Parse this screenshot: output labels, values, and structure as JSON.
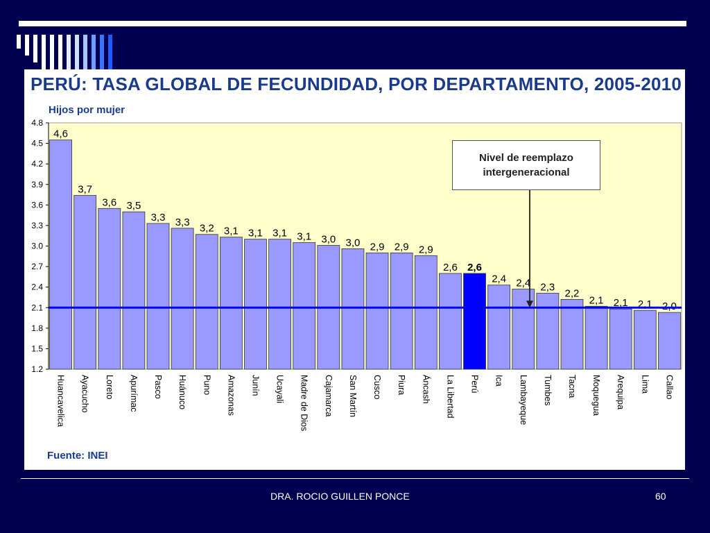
{
  "slide": {
    "title": "PERÚ: TASA GLOBAL DE FECUNDIDAD, POR DEPARTAMENTO, 2005-2010",
    "y_axis_label": "Hijos por mujer",
    "source": "Fuente: INEI",
    "footer": "DRA. ROCIO GUILLEN PONCE",
    "page_number": "60",
    "callout_line1": "Nivel de reemplazo",
    "callout_line2": "intergeneracional"
  },
  "colors": {
    "background": "#000050",
    "bar": "#9999ff",
    "highlight_bar": "#0000ff",
    "plot_area": "#ffffcc",
    "reference_line": "#0000ff",
    "title": "#1a3b8c"
  },
  "chart_data": {
    "type": "bar",
    "title": "PERÚ: TASA GLOBAL DE FECUNDIDAD, POR DEPARTAMENTO, 2005-2010",
    "ylabel": "Hijos por mujer",
    "xlabel": "",
    "ylim": [
      1.2,
      4.8
    ],
    "yticks": [
      "1.2",
      "1.5",
      "1.8",
      "2.1",
      "2.4",
      "2.7",
      "3.0",
      "3.3",
      "3.6",
      "3.9",
      "4.2",
      "4.5",
      "4.8"
    ],
    "grid": false,
    "categories": [
      "Huancavelica",
      "Ayacucho",
      "Loreto",
      "Apurímac",
      "Pasco",
      "Huánuco",
      "Puno",
      "Amazonas",
      "Junín",
      "Ucayali",
      "Madre de Dios",
      "Cajamarca",
      "San Martín",
      "Cusco",
      "Piura",
      "Áncash",
      "La Libertad",
      "Perú",
      "Ica",
      "Lambayeque",
      "Tumbes",
      "Tacna",
      "Moquegua",
      "Arequipa",
      "Lima",
      "Callao"
    ],
    "values": [
      4.55,
      3.74,
      3.55,
      3.5,
      3.33,
      3.26,
      3.17,
      3.13,
      3.1,
      3.1,
      3.05,
      3.01,
      2.96,
      2.9,
      2.9,
      2.86,
      2.6,
      2.6,
      2.43,
      2.37,
      2.31,
      2.22,
      2.12,
      2.08,
      2.06,
      2.03
    ],
    "data_labels": [
      "4,6",
      "3,7",
      "3,6",
      "3,5",
      "3,3",
      "3,3",
      "3,2",
      "3,1",
      "3,1",
      "3,1",
      "3,1",
      "3,0",
      "3,0",
      "2,9",
      "2,9",
      "2,9",
      "2,6",
      "2,6",
      "2,4",
      "2,4",
      "2,3",
      "2,2",
      "2,1",
      "2,1",
      "2,1",
      "2,0"
    ],
    "highlight_category": "Perú",
    "reference_line": {
      "value": 2.1,
      "label": "Nivel de reemplazo intergeneracional"
    }
  }
}
